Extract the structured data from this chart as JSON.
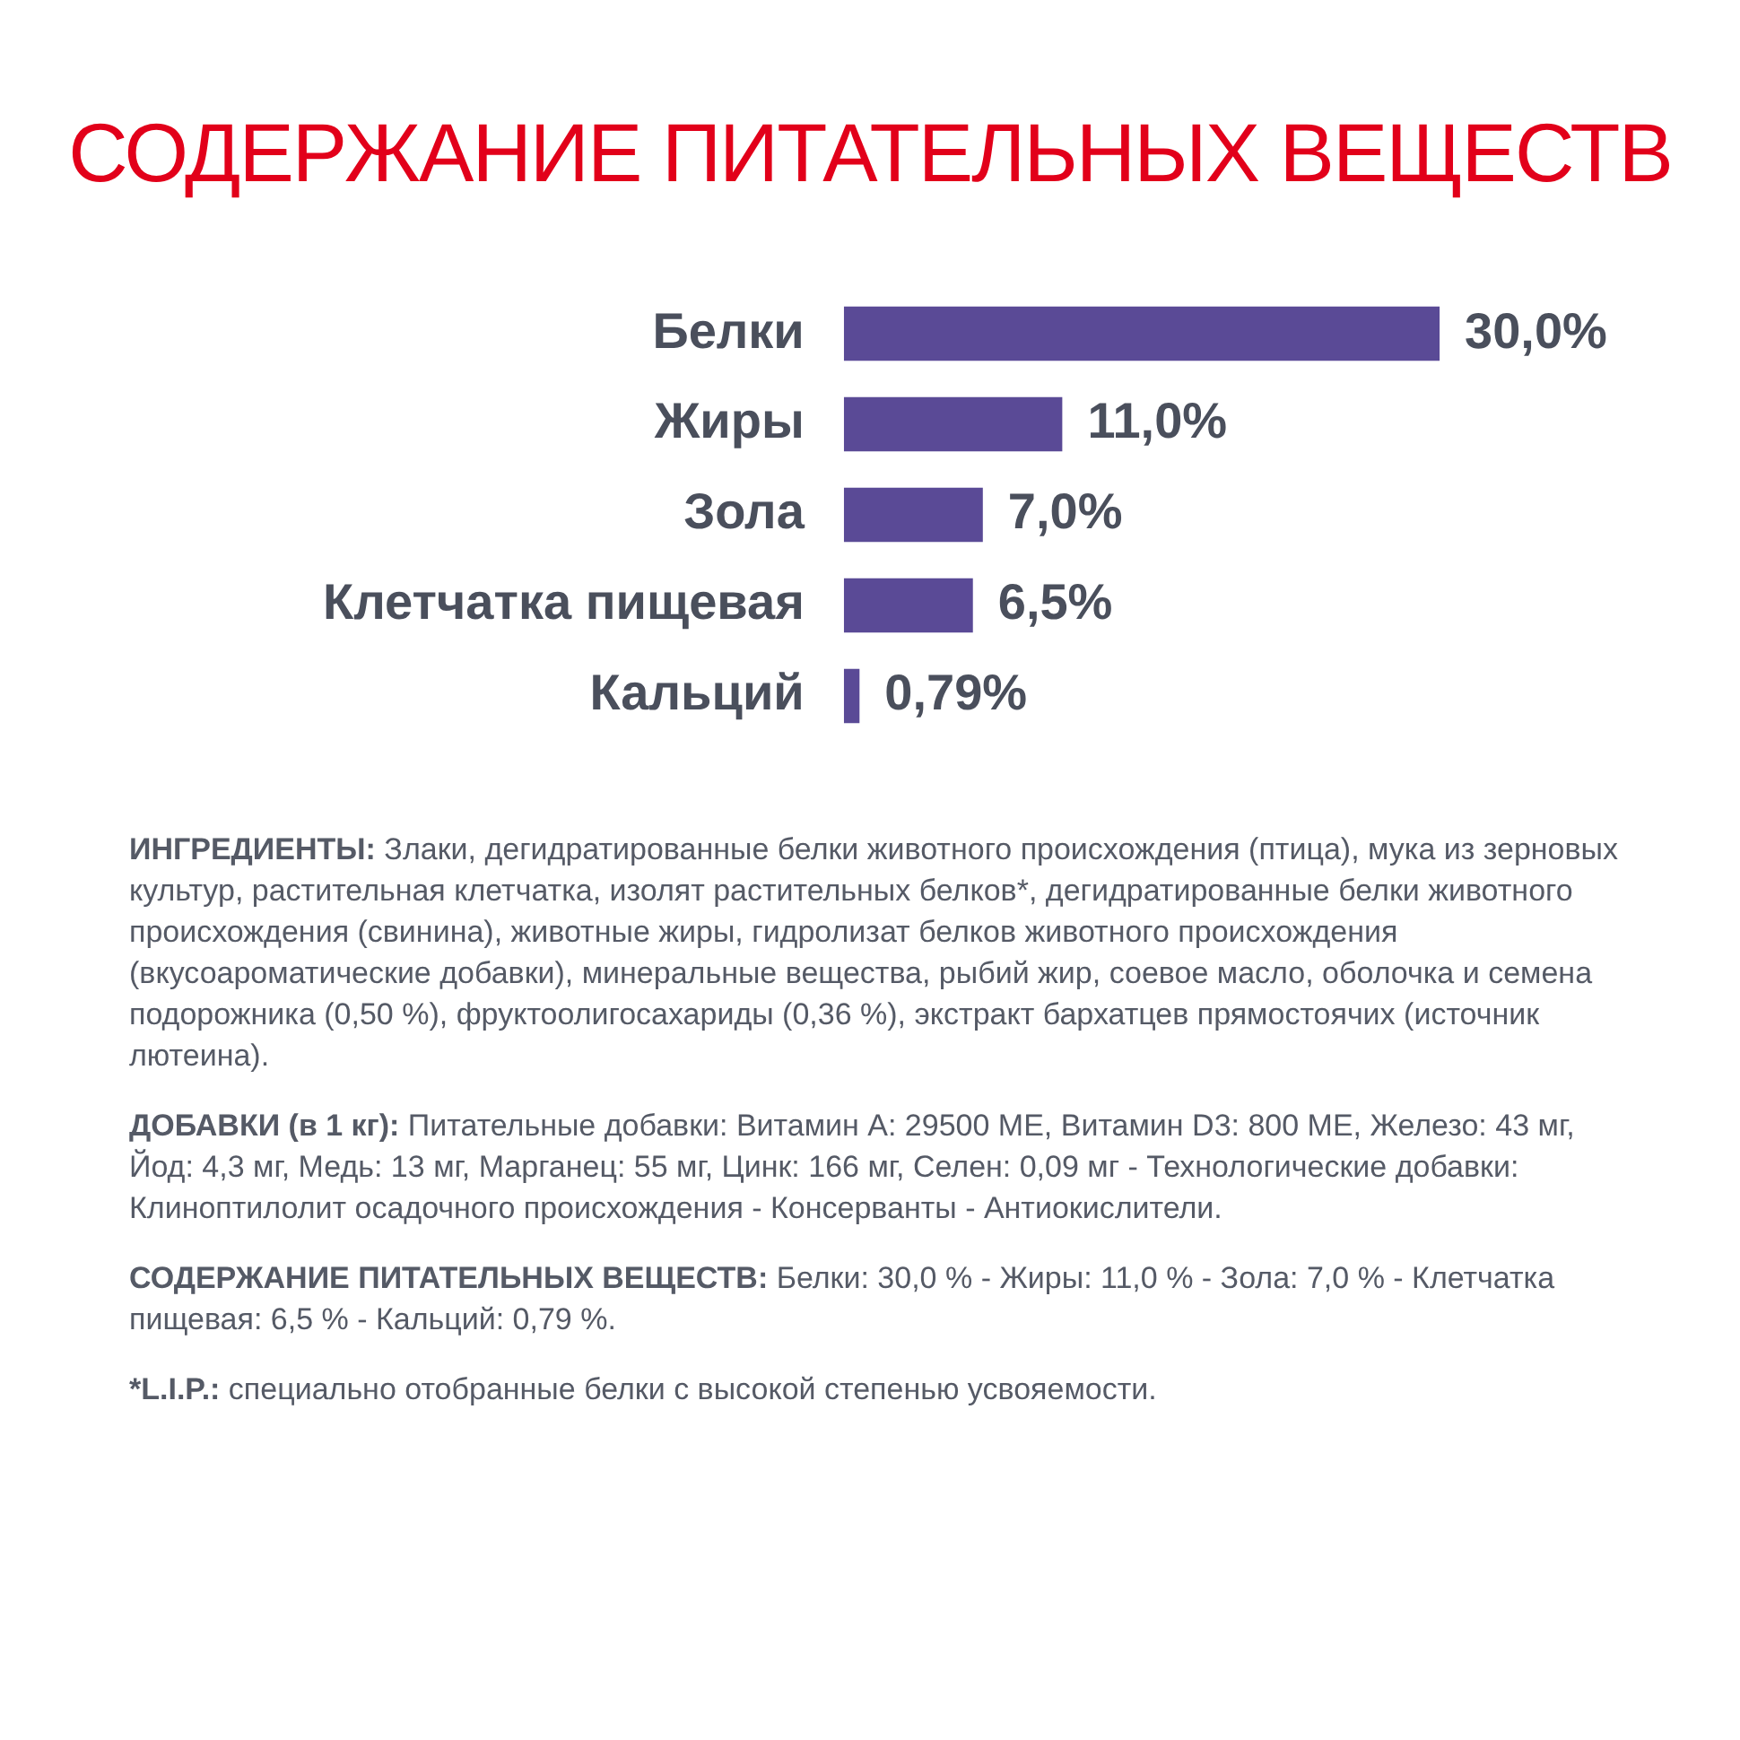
{
  "chart_data": {
    "type": "bar",
    "orientation": "horizontal",
    "title": "СОДЕРЖАНИЕ ПИТАТЕЛЬНЫХ ВЕЩЕСТВ",
    "categories": [
      "Белки",
      "Жиры",
      "Зола",
      "Клетчатка пищевая",
      "Кальций"
    ],
    "values": [
      30.0,
      11.0,
      7.0,
      6.5,
      0.79
    ],
    "value_labels": [
      "30,0%",
      "11,0%",
      "7,0%",
      "6,5%",
      "0,79%"
    ],
    "color": "#5a4a96",
    "legend": false,
    "tick_labels": "y",
    "annotations": [
      "ИНГРЕДИЕНТЫ: Злаки, дегидратированные белки животного происхождения (птица), мука из зерновых культур, растительная клетчатка, изолят растительных белков*, дегидратированные белки животного происхождения (свинина), животные жиры, гидролизат белков животного происхождения (вкусоароматические добавки), минеральные вещества, рыбий жир, соевое масло, оболочка и семена подорожника (0,50 %), фруктоолигосахариды (0,36 %), экстракт бархатцев прямостоячих (источник лютеина).",
      "ДОБАВКИ (в 1 кг): Питательные добавки: Витамин A: 29500 МЕ, Витамин D3: 800 МЕ, Железо: 43 мг, Йод: 4,3 мг, Медь: 13 мг, Марганец: 55 мг, Цинк: 166 мг, Селен: 0,09 мг - Технологические добавки: Клиноптилолит осадочного происхождения - Консерванты - Антиокислители.",
      "СОДЕРЖАНИЕ ПИТАТЕЛЬНЫХ ВЕЩЕСТВ: Белки: 30,0 % - Жиры: 11,0 % - Зола: 7,0 % - Клетчатка пищевая: 6,5 % - Кальций: 0,79 %.",
      "*L.I.P.: специально отобранные белки с высокой степенью усвояемости."
    ]
  }
}
